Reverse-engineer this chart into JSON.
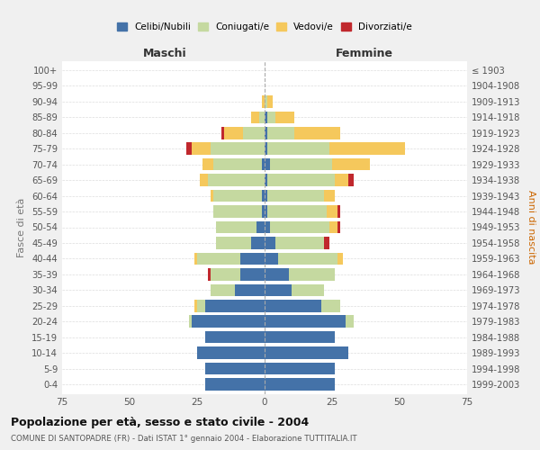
{
  "age_groups": [
    "0-4",
    "5-9",
    "10-14",
    "15-19",
    "20-24",
    "25-29",
    "30-34",
    "35-39",
    "40-44",
    "45-49",
    "50-54",
    "55-59",
    "60-64",
    "65-69",
    "70-74",
    "75-79",
    "80-84",
    "85-89",
    "90-94",
    "95-99",
    "100+"
  ],
  "birth_years": [
    "1999-2003",
    "1994-1998",
    "1989-1993",
    "1984-1988",
    "1979-1983",
    "1974-1978",
    "1969-1973",
    "1964-1968",
    "1959-1963",
    "1954-1958",
    "1949-1953",
    "1944-1948",
    "1939-1943",
    "1934-1938",
    "1929-1933",
    "1924-1928",
    "1919-1923",
    "1914-1918",
    "1909-1913",
    "1904-1908",
    "≤ 1903"
  ],
  "male": {
    "celibe": [
      22,
      22,
      25,
      22,
      27,
      22,
      11,
      9,
      9,
      5,
      3,
      1,
      1,
      0,
      1,
      0,
      0,
      0,
      0,
      0,
      0
    ],
    "coniugato": [
      0,
      0,
      0,
      0,
      1,
      3,
      9,
      11,
      16,
      13,
      15,
      18,
      18,
      21,
      18,
      20,
      8,
      2,
      0,
      0,
      0
    ],
    "vedovo": [
      0,
      0,
      0,
      0,
      0,
      1,
      0,
      0,
      1,
      0,
      0,
      0,
      1,
      3,
      4,
      7,
      7,
      3,
      1,
      0,
      0
    ],
    "divorziato": [
      0,
      0,
      0,
      0,
      0,
      0,
      0,
      1,
      0,
      0,
      0,
      0,
      0,
      0,
      0,
      2,
      1,
      0,
      0,
      0,
      0
    ]
  },
  "female": {
    "nubile": [
      26,
      26,
      31,
      26,
      30,
      21,
      10,
      9,
      5,
      4,
      2,
      1,
      1,
      1,
      2,
      1,
      1,
      1,
      0,
      0,
      0
    ],
    "coniugata": [
      0,
      0,
      0,
      0,
      3,
      7,
      12,
      17,
      22,
      18,
      22,
      22,
      21,
      25,
      23,
      23,
      10,
      3,
      1,
      0,
      0
    ],
    "vedova": [
      0,
      0,
      0,
      0,
      0,
      0,
      0,
      0,
      2,
      0,
      3,
      4,
      4,
      5,
      14,
      28,
      17,
      7,
      2,
      0,
      0
    ],
    "divorziata": [
      0,
      0,
      0,
      0,
      0,
      0,
      0,
      0,
      0,
      2,
      1,
      1,
      0,
      2,
      0,
      0,
      0,
      0,
      0,
      0,
      0
    ]
  },
  "colors": {
    "celibe": "#4472a8",
    "coniugato": "#c5d9a0",
    "vedovo": "#f5c85c",
    "divorziato": "#c0282d"
  },
  "xlim": 75,
  "title": "Popolazione per età, sesso e stato civile - 2004",
  "subtitle": "COMUNE DI SANTOPADRE (FR) - Dati ISTAT 1° gennaio 2004 - Elaborazione TUTTITALIA.IT",
  "ylabel_left": "Fasce di età",
  "ylabel_right": "Anni di nascita",
  "xlabel_left": "Maschi",
  "xlabel_right": "Femmine",
  "legend_labels": [
    "Celibi/Nubili",
    "Coniugati/e",
    "Vedovi/e",
    "Divorziati/e"
  ],
  "bg_color": "#f0f0f0",
  "plot_bg_color": "#ffffff"
}
